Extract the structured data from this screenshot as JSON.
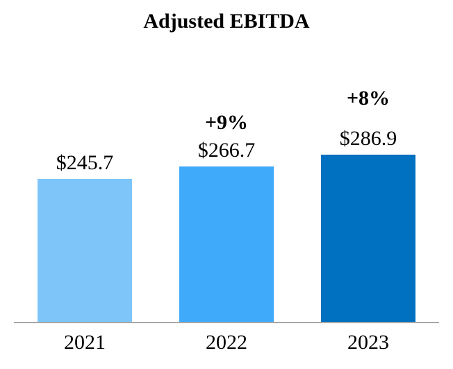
{
  "chart_data": {
    "type": "bar",
    "title": "Adjusted EBITDA",
    "categories": [
      "2021",
      "2022",
      "2023"
    ],
    "values": [
      245.7,
      266.7,
      286.9
    ],
    "value_labels": [
      "$245.7",
      "$266.7",
      "$286.9"
    ],
    "growth_labels": [
      "",
      "+9%",
      "+8%"
    ],
    "bar_colors": [
      "#7EC5FA",
      "#3FA9FA",
      "#0070C0"
    ],
    "axis_color": "#A6A6A6",
    "text_color": "#000000",
    "xlabel": "",
    "ylabel": "",
    "ylim": [
      0,
      300
    ],
    "grid": false,
    "legend": false
  }
}
